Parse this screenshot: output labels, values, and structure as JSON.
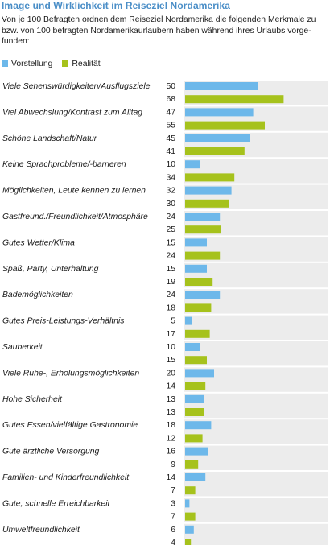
{
  "header": {
    "title": "Image und Wirklichkeit im Reiseziel Nordamerika",
    "subtitle": "Von je 100 Befragten ordnen dem Reiseziel Nordamerika die folgenden Merkmale zu bzw. von 100 befragten Nordamerikaurlaubern haben während ihres Urlaubs vorge- funden:"
  },
  "colors": {
    "vorstellung": "#6db8ea",
    "realitaet": "#a6c21c",
    "band": "#ececec"
  },
  "chart_data": {
    "type": "bar",
    "orientation": "horizontal",
    "categories": [
      "Viele Sehenswürdigkeiten/Ausflugsziele",
      "Viel Abwechslung/Kontrast zum Alltag",
      "Schöne Landschaft/Natur",
      "Keine Sprachprobleme/-barrieren",
      "Möglichkeiten, Leute kennen zu lernen",
      "Gastfreund./Freundlichkeit/Atmosphäre",
      "Gutes Wetter/Klima",
      "Spaß, Party, Unterhaltung",
      "Bademöglichkeiten",
      "Gutes Preis-Leistungs-Verhältnis",
      "Sauberkeit",
      "Viele Ruhe-, Erholungsmöglichkeiten",
      "Hohe Sicherheit",
      "Gutes Essen/vielfältige Gastronomie",
      "Gute ärztliche Versorgung",
      "Familien- und Kinderfreundlichkeit",
      "Gute, schnelle Erreichbarkeit",
      "Umweltfreundlichkeit"
    ],
    "series": [
      {
        "name": "Vorstellung",
        "values": [
          50,
          47,
          45,
          10,
          32,
          24,
          15,
          15,
          24,
          5,
          10,
          20,
          13,
          18,
          16,
          14,
          3,
          6
        ]
      },
      {
        "name": "Realität",
        "values": [
          68,
          55,
          41,
          34,
          30,
          25,
          24,
          19,
          18,
          17,
          15,
          14,
          13,
          12,
          9,
          7,
          7,
          4
        ]
      }
    ],
    "xlim": [
      0,
      100
    ],
    "legend_position": "top-left"
  }
}
